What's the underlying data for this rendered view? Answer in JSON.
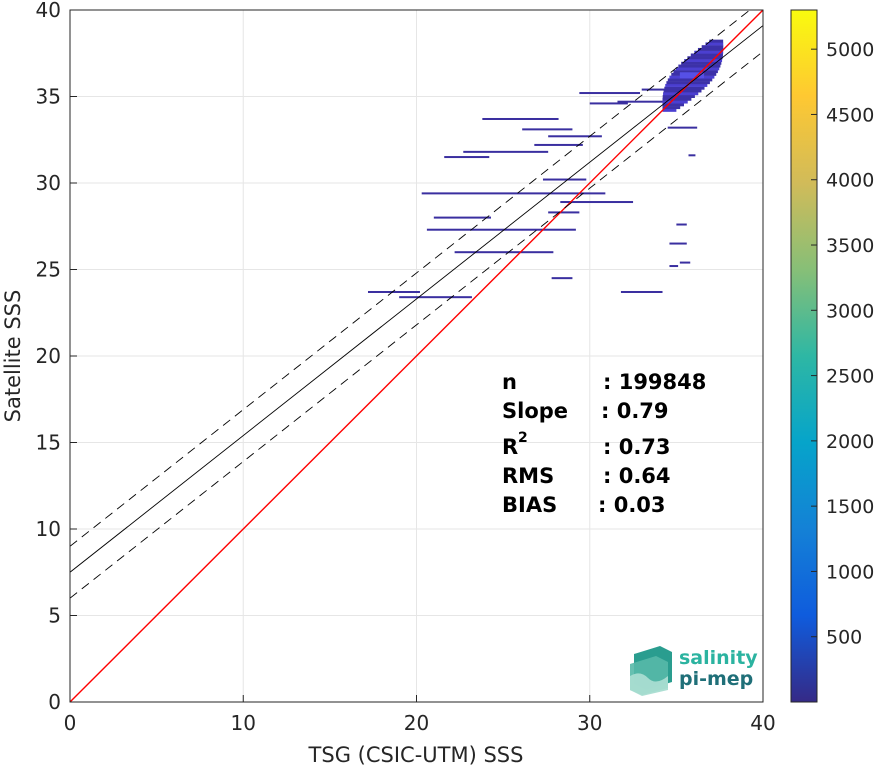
{
  "chart_data": {
    "type": "heatmap",
    "xlabel": "TSG (CSIC-UTM) SSS",
    "ylabel": "Satellite SSS",
    "xlim": [
      0,
      40
    ],
    "ylim": [
      0,
      40
    ],
    "x_ticks": [
      "0",
      "10",
      "20",
      "30",
      "40"
    ],
    "y_ticks": [
      "0",
      "5",
      "10",
      "15",
      "20",
      "25",
      "30",
      "35",
      "40"
    ],
    "grid": true,
    "colorbar": {
      "range": [
        0,
        5300
      ],
      "ticks": [
        "500",
        "1000",
        "1500",
        "2000",
        "2500",
        "3000",
        "3500",
        "4000",
        "4500",
        "5000"
      ],
      "colormap": "parula",
      "colors": [
        "#352a87",
        "#0f5cdd",
        "#1481d6",
        "#06a4ca",
        "#2eb7a4",
        "#87bf77",
        "#d1bb59",
        "#fec832",
        "#f9fb0e"
      ]
    },
    "reference_lines": [
      {
        "name": "1:1",
        "slope": 1,
        "intercept": 0,
        "color": "#ff0000",
        "style": "solid"
      },
      {
        "name": "fit",
        "slope": 0.79,
        "intercept": 7.5,
        "color": "#000000",
        "style": "solid"
      },
      {
        "name": "fit-upper",
        "slope": 0.79,
        "intercept": 9.0,
        "color": "#000000",
        "style": "dashed"
      },
      {
        "name": "fit-lower",
        "slope": 0.79,
        "intercept": 6.0,
        "color": "#000000",
        "style": "dashed"
      }
    ],
    "segments": [
      {
        "x0": 17.2,
        "x1": 20.2,
        "y": 23.7
      },
      {
        "x0": 19.0,
        "x1": 23.2,
        "y": 23.4
      },
      {
        "x0": 20.3,
        "x1": 30.9,
        "y": 29.4
      },
      {
        "x0": 21.0,
        "x1": 24.3,
        "y": 28.0
      },
      {
        "x0": 20.6,
        "x1": 29.2,
        "y": 27.3
      },
      {
        "x0": 22.2,
        "x1": 27.9,
        "y": 26.0
      },
      {
        "x0": 21.6,
        "x1": 24.2,
        "y": 31.5
      },
      {
        "x0": 22.7,
        "x1": 27.6,
        "y": 31.8
      },
      {
        "x0": 23.8,
        "x1": 28.2,
        "y": 33.7
      },
      {
        "x0": 26.1,
        "x1": 29.0,
        "y": 33.1
      },
      {
        "x0": 27.6,
        "x1": 30.7,
        "y": 32.7
      },
      {
        "x0": 26.8,
        "x1": 29.6,
        "y": 32.2
      },
      {
        "x0": 27.3,
        "x1": 29.8,
        "y": 30.2
      },
      {
        "x0": 27.6,
        "x1": 29.4,
        "y": 28.3
      },
      {
        "x0": 28.3,
        "x1": 32.5,
        "y": 28.9
      },
      {
        "x0": 29.4,
        "x1": 32.9,
        "y": 35.2
      },
      {
        "x0": 30.0,
        "x1": 32.2,
        "y": 34.6
      },
      {
        "x0": 31.6,
        "x1": 34.2,
        "y": 34.7
      },
      {
        "x0": 33.0,
        "x1": 35.2,
        "y": 35.4
      },
      {
        "x0": 34.5,
        "x1": 36.2,
        "y": 33.2
      },
      {
        "x0": 27.8,
        "x1": 29.0,
        "y": 24.5
      },
      {
        "x0": 31.8,
        "x1": 34.2,
        "y": 23.7
      },
      {
        "x0": 34.6,
        "x1": 35.6,
        "y": 26.5
      },
      {
        "x0": 35.0,
        "x1": 35.6,
        "y": 27.6
      },
      {
        "x0": 35.2,
        "x1": 35.8,
        "y": 25.4
      },
      {
        "x0": 34.6,
        "x1": 35.1,
        "y": 25.2
      },
      {
        "x0": 35.7,
        "x1": 36.1,
        "y": 31.6
      }
    ],
    "cluster": {
      "x_range": [
        34.2,
        37.8
      ],
      "y_range": [
        34.2,
        38.2
      ],
      "peak_count": 5300
    }
  },
  "stats": {
    "n_label": "n",
    "n_value": ": 199848",
    "slope_label": "Slope",
    "slope_value": ": 0.79",
    "r2_label": "R",
    "r2_sup": "2",
    "r2_value": ": 0.73",
    "rms_label": "RMS",
    "rms_value": ": 0.64",
    "bias_label": "BIAS",
    "bias_value": ": 0.03"
  },
  "logo": {
    "line1": "salinity",
    "line2": "pi-mep"
  }
}
